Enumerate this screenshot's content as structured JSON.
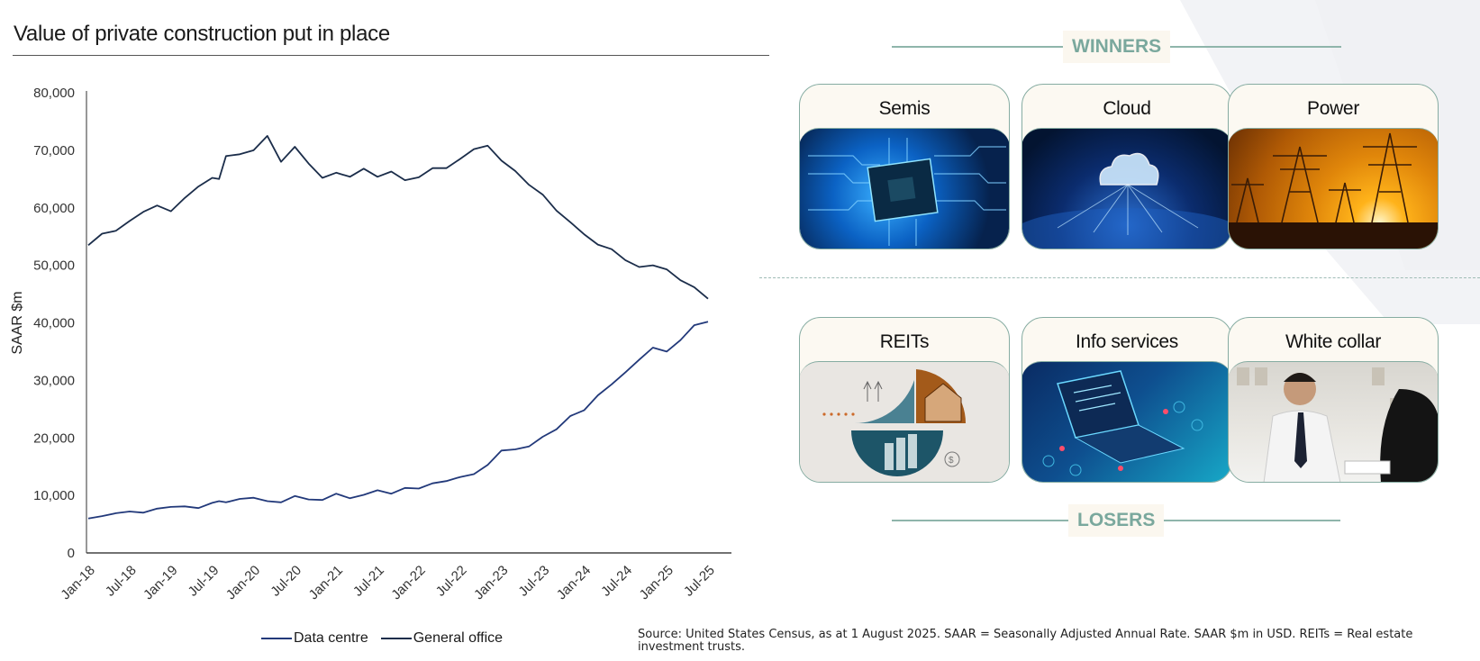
{
  "title": "Value of private construction put in place",
  "chart_data": {
    "type": "line",
    "title": "Value of private construction put in place",
    "xlabel": "",
    "ylabel": "SAAR $m",
    "ylim": [
      0,
      80000
    ],
    "yticks": [
      0,
      10000,
      20000,
      30000,
      40000,
      50000,
      60000,
      70000,
      80000
    ],
    "ytick_labels": [
      "0",
      "10,000",
      "20,000",
      "30,000",
      "40,000",
      "50,000",
      "60,000",
      "70,000",
      "80,000"
    ],
    "xtick_labels": [
      "Jan-18",
      "Jul-18",
      "Jan-19",
      "Jul-19",
      "Jan-20",
      "Jul-20",
      "Jan-21",
      "Jul-21",
      "Jan-22",
      "Jul-22",
      "Jan-23",
      "Jul-23",
      "Jan-24",
      "Jul-24",
      "Jan-25",
      "Jul-25"
    ],
    "x_months_from_jan18": [
      0,
      2,
      4,
      6,
      8,
      10,
      12,
      14,
      16,
      18,
      19,
      20,
      22,
      24,
      26,
      28,
      30,
      32,
      34,
      36,
      38,
      40,
      42,
      44,
      46,
      48,
      50,
      52,
      54,
      56,
      58,
      60,
      62,
      64,
      66,
      68,
      70,
      72,
      74,
      76,
      78,
      80,
      82,
      84,
      86,
      88,
      90
    ],
    "grid": false,
    "legend_position": "bottom",
    "series": [
      {
        "name": "Data centre",
        "color": "#22397a",
        "values": [
          6000,
          6400,
          6900,
          7200,
          7000,
          7700,
          8000,
          8100,
          7800,
          8700,
          9000,
          8800,
          9400,
          9600,
          9000,
          8800,
          9900,
          9300,
          9200,
          10300,
          9500,
          10100,
          10900,
          10300,
          11300,
          11200,
          12100,
          12500,
          13200,
          13700,
          15300,
          17800,
          18000,
          18500,
          20200,
          21500,
          23800,
          24800,
          27400,
          29300,
          31400,
          33600,
          35700,
          35000,
          37000,
          39600,
          40200
        ]
      },
      {
        "name": "General office",
        "color": "#1b2d4a",
        "values": [
          53500,
          55500,
          56000,
          57700,
          59300,
          60400,
          59400,
          61700,
          63700,
          65200,
          65000,
          69000,
          69300,
          70000,
          72500,
          68000,
          70600,
          67700,
          65200,
          66100,
          65400,
          66800,
          65400,
          66300,
          64800,
          65300,
          66900,
          66900,
          68500,
          70200,
          70800,
          68200,
          66400,
          64000,
          62300,
          59500,
          57500,
          55400,
          53600,
          52800,
          50900,
          49700,
          50000,
          49300,
          47400,
          46200,
          44200
        ]
      }
    ]
  },
  "legend": [
    "Data centre",
    "General office"
  ],
  "source": "Source: United States Census, as at 1 August 2025. SAAR = Seasonally Adjusted Annual Rate. SAAR $m in USD. REITs = Real estate investment trusts.",
  "winners": {
    "label": "WINNERS",
    "cards": [
      {
        "label": "Semis",
        "image": "circuit-chip"
      },
      {
        "label": "Cloud",
        "image": "cloud-network"
      },
      {
        "label": "Power",
        "image": "power-pylons"
      }
    ]
  },
  "losers": {
    "label": "LOSERS",
    "cards": [
      {
        "label": "REITs",
        "image": "real-estate-illustration"
      },
      {
        "label": "Info services",
        "image": "laptop-data"
      },
      {
        "label": "White collar",
        "image": "office-meeting"
      }
    ]
  },
  "colors": {
    "accent": "#7aa89d",
    "card_border": "#86aca2",
    "pill_bg": "#fbf7ef"
  }
}
